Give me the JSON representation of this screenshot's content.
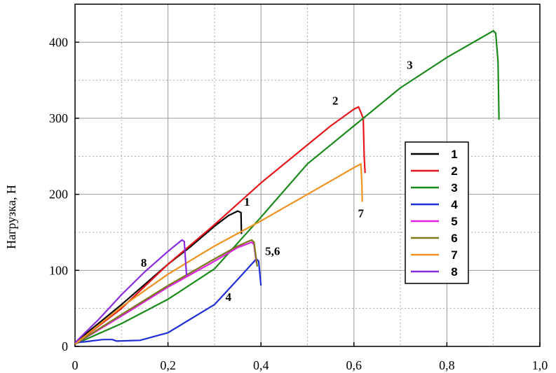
{
  "chart_data": {
    "type": "line",
    "ylabel": "Нагрузка, Н",
    "xlabel": "",
    "xlim": [
      0,
      1.0
    ],
    "ylim": [
      0,
      450
    ],
    "x_ticks": [
      "0",
      "0,2",
      "0,4",
      "0,6",
      "0,8",
      "1,0"
    ],
    "x_tick_values": [
      0,
      0.2,
      0.4,
      0.6,
      0.8,
      1.0
    ],
    "y_ticks": [
      "0",
      "100",
      "200",
      "300",
      "400"
    ],
    "y_tick_values": [
      0,
      100,
      200,
      300,
      400
    ],
    "grid": true,
    "legend_position": "right",
    "series": [
      {
        "name": "1",
        "color": "#000000",
        "points": [
          [
            0,
            5
          ],
          [
            0.1,
            55
          ],
          [
            0.2,
            108
          ],
          [
            0.25,
            132
          ],
          [
            0.3,
            158
          ],
          [
            0.33,
            172
          ],
          [
            0.35,
            178
          ],
          [
            0.357,
            176
          ],
          [
            0.358,
            148
          ]
        ]
      },
      {
        "name": "2",
        "color": "#e8141c",
        "points": [
          [
            0,
            3
          ],
          [
            0.1,
            50
          ],
          [
            0.2,
            108
          ],
          [
            0.3,
            160
          ],
          [
            0.4,
            215
          ],
          [
            0.5,
            265
          ],
          [
            0.55,
            290
          ],
          [
            0.6,
            312
          ],
          [
            0.61,
            315
          ],
          [
            0.62,
            300
          ],
          [
            0.622,
            250
          ],
          [
            0.624,
            228
          ]
        ]
      },
      {
        "name": "3",
        "color": "#1a8a1a",
        "points": [
          [
            0,
            3
          ],
          [
            0.1,
            30
          ],
          [
            0.2,
            62
          ],
          [
            0.3,
            102
          ],
          [
            0.4,
            170
          ],
          [
            0.5,
            240
          ],
          [
            0.6,
            290
          ],
          [
            0.7,
            340
          ],
          [
            0.8,
            380
          ],
          [
            0.9,
            415
          ],
          [
            0.905,
            412
          ],
          [
            0.91,
            375
          ],
          [
            0.912,
            298
          ]
        ]
      },
      {
        "name": "4",
        "color": "#1f2fd8",
        "points": [
          [
            0,
            5
          ],
          [
            0.02,
            6
          ],
          [
            0.06,
            9
          ],
          [
            0.08,
            9
          ],
          [
            0.09,
            7
          ],
          [
            0.14,
            8
          ],
          [
            0.2,
            18
          ],
          [
            0.3,
            55
          ],
          [
            0.35,
            88
          ],
          [
            0.39,
            115
          ],
          [
            0.395,
            112
          ],
          [
            0.4,
            80
          ]
        ]
      },
      {
        "name": "5",
        "color": "#e020e0",
        "points": [
          [
            0,
            3
          ],
          [
            0.1,
            40
          ],
          [
            0.2,
            78
          ],
          [
            0.3,
            112
          ],
          [
            0.35,
            130
          ],
          [
            0.38,
            137
          ],
          [
            0.385,
            134
          ],
          [
            0.39,
            110
          ]
        ]
      },
      {
        "name": "6",
        "color": "#7a7a1a",
        "points": [
          [
            0,
            3
          ],
          [
            0.1,
            42
          ],
          [
            0.2,
            80
          ],
          [
            0.3,
            115
          ],
          [
            0.35,
            132
          ],
          [
            0.38,
            140
          ],
          [
            0.385,
            137
          ],
          [
            0.392,
            105
          ]
        ]
      },
      {
        "name": "7",
        "color": "#f0921e",
        "points": [
          [
            0,
            3
          ],
          [
            0.1,
            52
          ],
          [
            0.2,
            95
          ],
          [
            0.3,
            132
          ],
          [
            0.4,
            165
          ],
          [
            0.5,
            200
          ],
          [
            0.6,
            235
          ],
          [
            0.615,
            240
          ],
          [
            0.617,
            215
          ],
          [
            0.618,
            190
          ]
        ]
      },
      {
        "name": "8",
        "color": "#8a2be2",
        "points": [
          [
            0,
            5
          ],
          [
            0.05,
            35
          ],
          [
            0.1,
            68
          ],
          [
            0.15,
            98
          ],
          [
            0.2,
            125
          ],
          [
            0.23,
            140
          ],
          [
            0.235,
            138
          ],
          [
            0.24,
            93
          ]
        ]
      }
    ],
    "annotations": [
      {
        "text": "1",
        "x": 0.37,
        "y": 185
      },
      {
        "text": "2",
        "x": 0.56,
        "y": 318
      },
      {
        "text": "3",
        "x": 0.72,
        "y": 365
      },
      {
        "text": "4",
        "x": 0.33,
        "y": 60
      },
      {
        "text": "5,6",
        "x": 0.425,
        "y": 120
      },
      {
        "text": "7",
        "x": 0.615,
        "y": 170
      },
      {
        "text": "8",
        "x": 0.148,
        "y": 105
      }
    ]
  }
}
